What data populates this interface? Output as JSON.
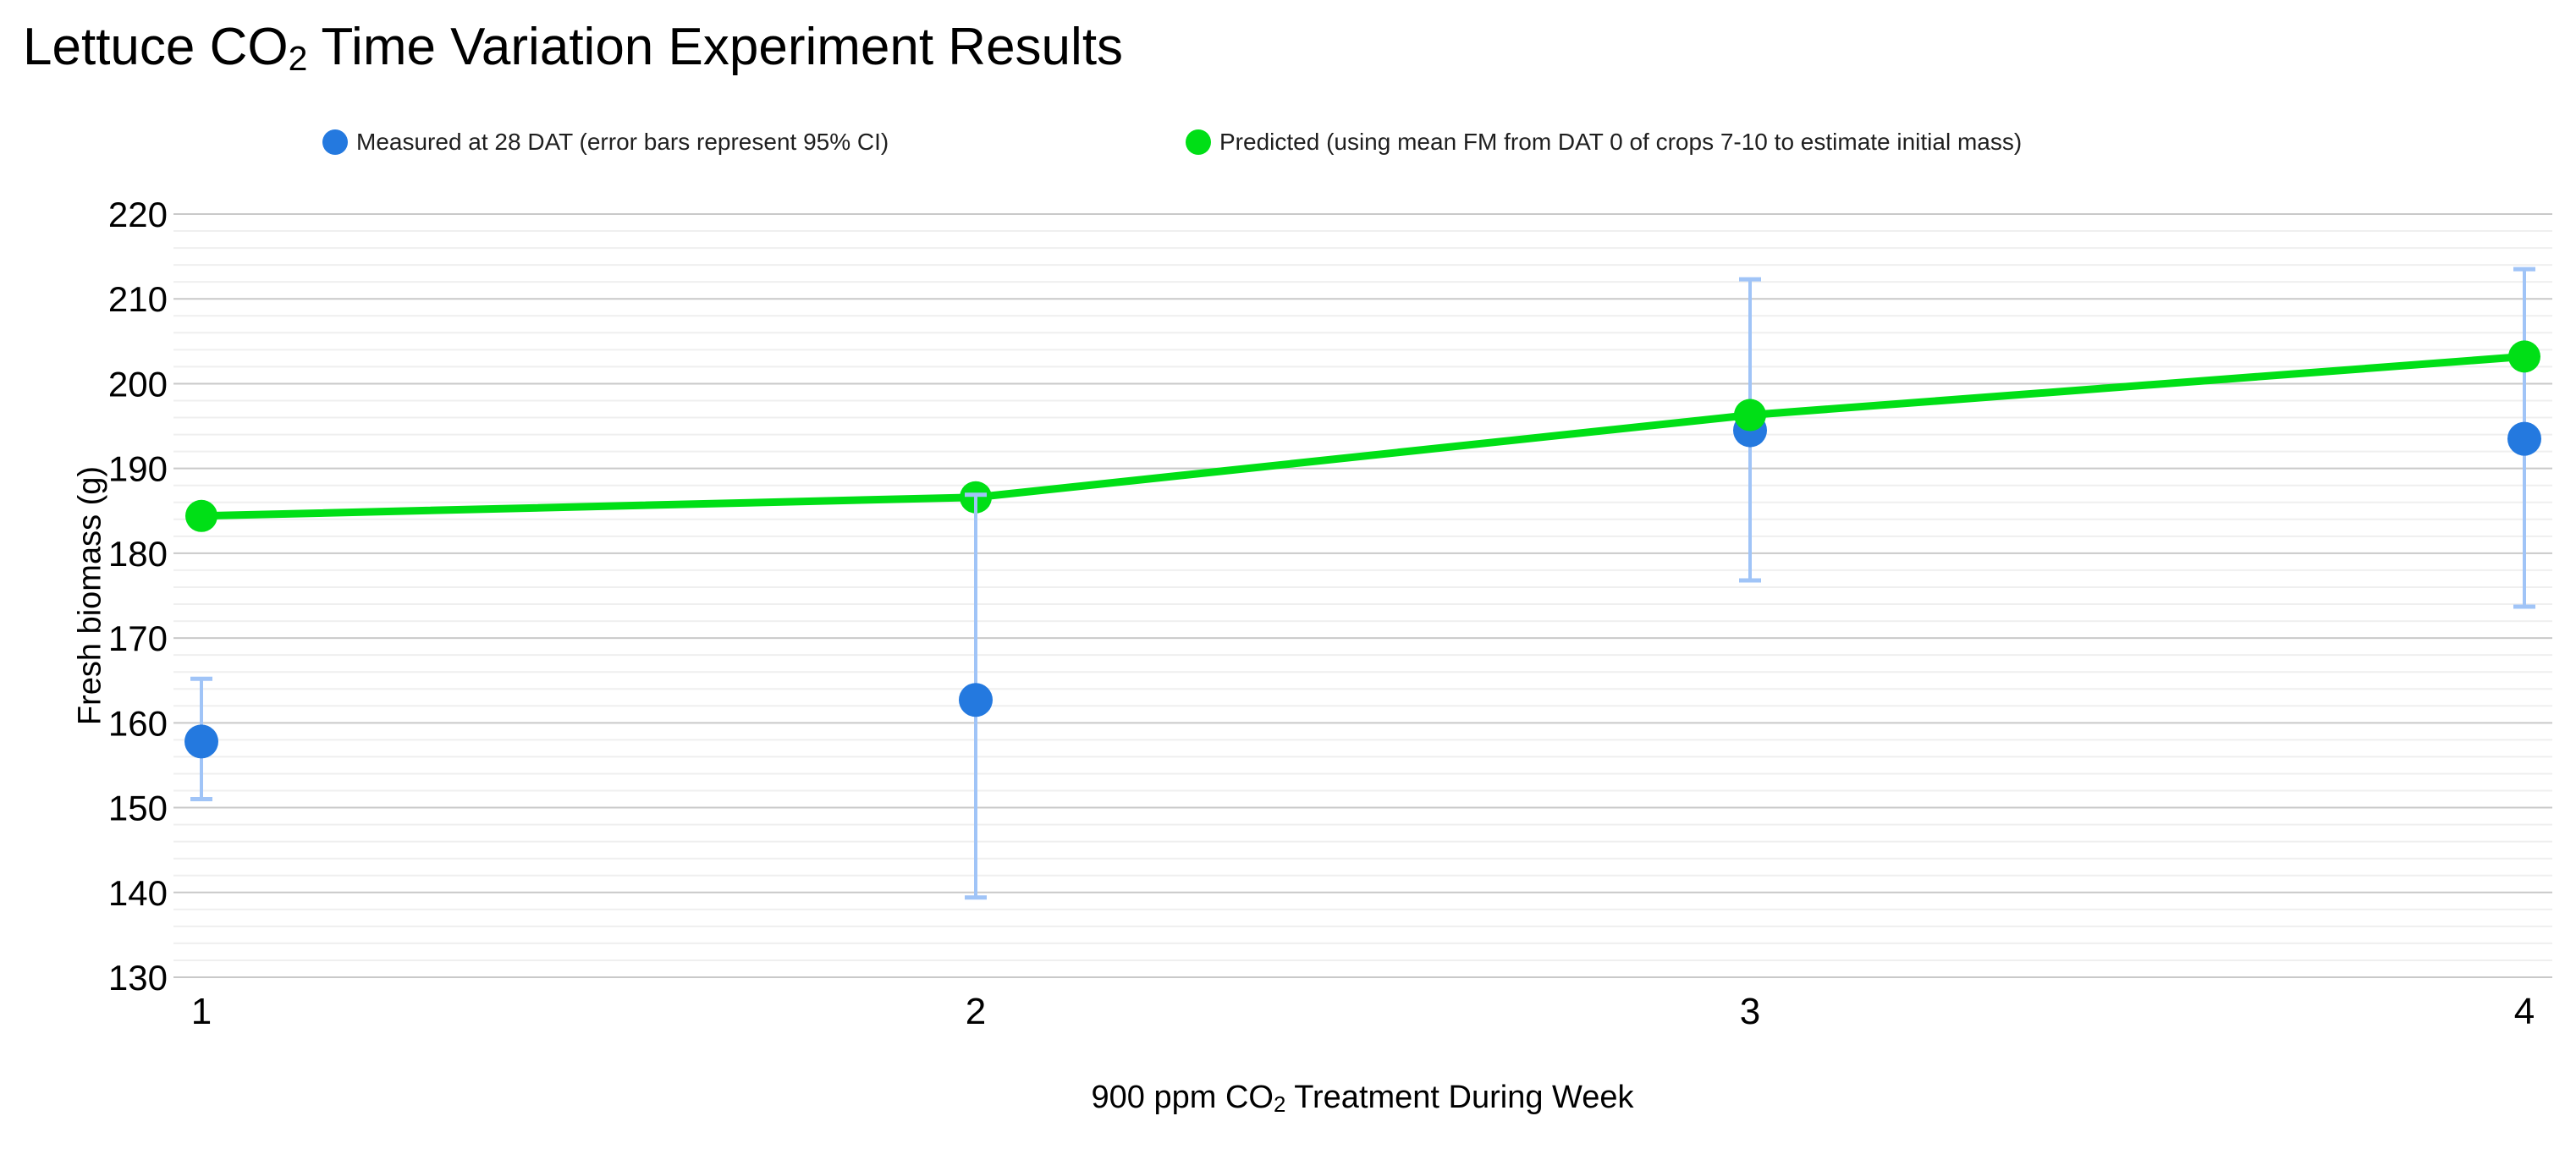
{
  "title": {
    "prefix": "Lettuce CO",
    "subscript": "2",
    "suffix": " Time Variation Experiment Results",
    "full": "Lettuce CO₂ Time Variation Experiment Results"
  },
  "legend": {
    "measured": {
      "label": "Measured at 28 DAT (error bars represent 95% CI)",
      "color": "#2479DF"
    },
    "predicted": {
      "label": "Predicted (using mean FM from DAT 0 of crops 7-10 to estimate initial mass)",
      "color": "#00DF16"
    }
  },
  "axes": {
    "y_title": "Fresh biomass (g)",
    "x_title": {
      "prefix": "900 ppm CO",
      "subscript": "2",
      "suffix": " Treatment During Week",
      "full": "900 ppm CO₂ Treatment During Week"
    }
  },
  "chart_data": {
    "type": "scatter",
    "title": "Lettuce CO₂ Time Variation Experiment Results",
    "xlabel": "900 ppm CO₂ Treatment During Week",
    "ylabel": "Fresh biomass (g)",
    "x": [
      1,
      2,
      3,
      4
    ],
    "x_tick_labels": [
      "1",
      "2",
      "3",
      "4"
    ],
    "ylim": [
      130,
      220
    ],
    "y_major_step": 10,
    "y_minor_step": 2,
    "y_ticks": [
      130,
      140,
      150,
      160,
      170,
      180,
      190,
      200,
      210,
      220
    ],
    "grid": true,
    "legend_position": "top",
    "series": [
      {
        "name": "Measured at 28 DAT (error bars represent 95% CI)",
        "type": "points",
        "color": "#2479DF",
        "values": [
          157.8,
          162.7,
          194.5,
          193.5
        ],
        "error_low": [
          151.0,
          139.4,
          176.8,
          173.7
        ],
        "error_high": [
          165.2,
          186.9,
          212.3,
          213.5
        ],
        "error_bar_color": "#A0C4F7"
      },
      {
        "name": "Predicted (using mean FM from DAT 0 of crops 7-10 to estimate initial mass)",
        "type": "line_points",
        "color": "#00DF16",
        "values": [
          184.4,
          186.6,
          196.3,
          203.2
        ]
      }
    ]
  },
  "colors": {
    "background": "#ffffff",
    "grid_major": "#c9c9c9",
    "grid_minor": "#efefef",
    "tick_text": "#000000"
  }
}
